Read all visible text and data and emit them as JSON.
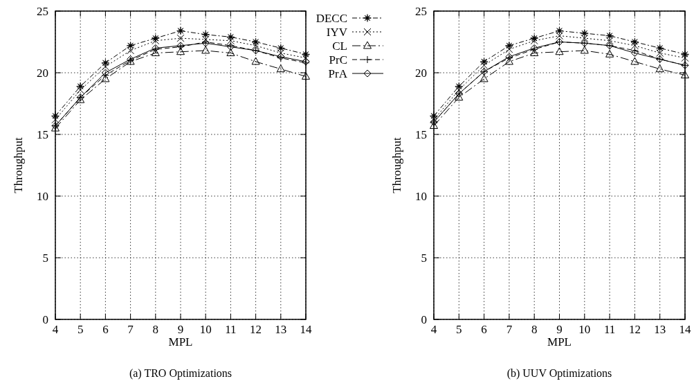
{
  "chart_data": [
    {
      "type": "line",
      "title": "(a) TRO Optimizations",
      "xlabel": "MPL",
      "ylabel": "Throughput",
      "x": [
        4,
        5,
        6,
        7,
        8,
        9,
        10,
        11,
        12,
        13,
        14
      ],
      "xlim": [
        4,
        14
      ],
      "xticks": [
        4,
        5,
        6,
        7,
        8,
        9,
        10,
        11,
        12,
        13,
        14
      ],
      "ylim": [
        0,
        25
      ],
      "yticks": [
        0,
        5,
        10,
        15,
        20,
        25
      ],
      "grid": true,
      "legend": "right",
      "series": [
        {
          "name": "DECC",
          "color": "#000000",
          "marker": "star",
          "line_style": "dashdot",
          "values": [
            16.5,
            18.9,
            20.8,
            22.2,
            22.8,
            23.4,
            23.1,
            22.9,
            22.5,
            22.0,
            21.5
          ]
        },
        {
          "name": "IYV",
          "color": "#000000",
          "marker": "x",
          "line_style": "dotted",
          "values": [
            16.2,
            18.6,
            20.5,
            21.8,
            22.6,
            22.8,
            22.7,
            22.6,
            22.2,
            21.6,
            21.2
          ]
        },
        {
          "name": "CL",
          "color": "#000000",
          "marker": "triangle",
          "line_style": "longdashdot",
          "values": [
            15.5,
            17.8,
            19.5,
            20.9,
            21.6,
            21.7,
            21.8,
            21.6,
            20.9,
            20.3,
            19.7
          ]
        },
        {
          "name": "PrC",
          "color": "#000000",
          "marker": "cross",
          "line_style": "dashed",
          "values": [
            15.7,
            18.0,
            19.8,
            21.0,
            21.9,
            22.1,
            22.5,
            22.2,
            21.8,
            21.2,
            20.8
          ]
        },
        {
          "name": "PrA",
          "color": "#000000",
          "marker": "diamond",
          "line_style": "solid",
          "values": [
            15.7,
            18.0,
            20.0,
            21.1,
            22.0,
            22.2,
            22.4,
            22.1,
            21.8,
            21.3,
            20.9
          ]
        }
      ]
    },
    {
      "type": "line",
      "title": "(b) UUV Optimizations",
      "xlabel": "MPL",
      "ylabel": "Throughput",
      "x": [
        4,
        5,
        6,
        7,
        8,
        9,
        10,
        11,
        12,
        13,
        14
      ],
      "xlim": [
        4,
        14
      ],
      "xticks": [
        4,
        5,
        6,
        7,
        8,
        9,
        10,
        11,
        12,
        13,
        14
      ],
      "ylim": [
        0,
        25
      ],
      "yticks": [
        0,
        5,
        10,
        15,
        20,
        25
      ],
      "grid": true,
      "series": [
        {
          "color": "#000000",
          "marker": "star",
          "line_style": "dashdot",
          "values": [
            16.5,
            18.9,
            20.9,
            22.2,
            22.8,
            23.4,
            23.2,
            23.0,
            22.5,
            22.0,
            21.5
          ]
        },
        {
          "color": "#000000",
          "marker": "x",
          "line_style": "dotted",
          "values": [
            16.2,
            18.6,
            20.6,
            21.9,
            22.6,
            23.0,
            22.8,
            22.6,
            22.2,
            21.6,
            21.2
          ]
        },
        {
          "color": "#000000",
          "marker": "triangle",
          "line_style": "longdashdot",
          "values": [
            15.7,
            18.0,
            19.5,
            20.9,
            21.6,
            21.7,
            21.8,
            21.5,
            20.9,
            20.3,
            19.8
          ]
        },
        {
          "color": "#000000",
          "marker": "cross",
          "line_style": "dashed",
          "values": [
            16.0,
            18.3,
            20.1,
            21.2,
            21.9,
            22.5,
            22.4,
            22.2,
            21.8,
            21.1,
            20.6
          ]
        },
        {
          "color": "#000000",
          "marker": "diamond",
          "line_style": "solid",
          "values": [
            16.0,
            18.3,
            20.1,
            21.3,
            22.0,
            22.5,
            22.4,
            22.2,
            21.6,
            21.1,
            20.6
          ]
        }
      ]
    }
  ]
}
